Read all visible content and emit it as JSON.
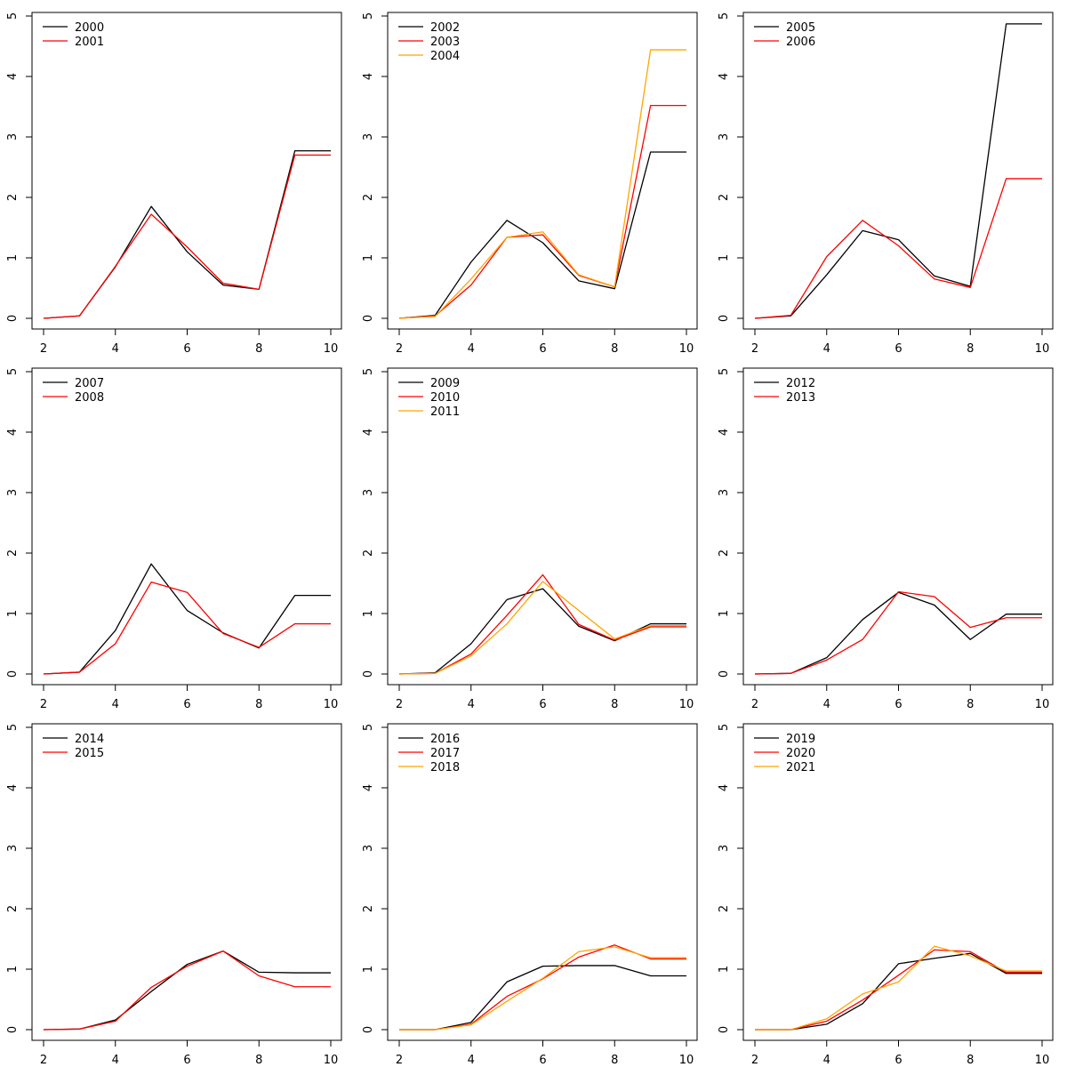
{
  "chart_data": [
    {
      "type": "line",
      "x": [
        2,
        3,
        4,
        5,
        6,
        7,
        8,
        9,
        10
      ],
      "xlim": [
        2,
        10
      ],
      "ylim": [
        0,
        5
      ],
      "xticks": [
        "2",
        "4",
        "6",
        "8",
        "10"
      ],
      "yticks": [
        "0",
        "1",
        "2",
        "3",
        "4",
        "5"
      ],
      "legend_position": "top-left",
      "series": [
        {
          "name": "2000",
          "color": "#000000",
          "values": [
            0.0,
            0.04,
            0.85,
            1.85,
            1.1,
            0.55,
            0.48,
            2.77,
            2.77
          ]
        },
        {
          "name": "2001",
          "color": "#ff0000",
          "values": [
            0.0,
            0.04,
            0.86,
            1.72,
            1.18,
            0.58,
            0.48,
            2.7,
            2.7
          ]
        }
      ]
    },
    {
      "type": "line",
      "x": [
        2,
        3,
        4,
        5,
        6,
        7,
        8,
        9,
        10
      ],
      "xlim": [
        2,
        10
      ],
      "ylim": [
        0,
        5
      ],
      "xticks": [
        "2",
        "4",
        "6",
        "8",
        "10"
      ],
      "yticks": [
        "0",
        "1",
        "2",
        "3",
        "4",
        "5"
      ],
      "legend_position": "top-left",
      "series": [
        {
          "name": "2002",
          "color": "#000000",
          "values": [
            0.0,
            0.05,
            0.93,
            1.62,
            1.25,
            0.62,
            0.49,
            2.75,
            2.75
          ]
        },
        {
          "name": "2003",
          "color": "#ff0000",
          "values": [
            0.0,
            0.04,
            0.55,
            1.34,
            1.38,
            0.71,
            0.52,
            3.52,
            3.52
          ]
        },
        {
          "name": "2004",
          "color": "#ffa500",
          "values": [
            0.0,
            0.03,
            0.65,
            1.34,
            1.43,
            0.72,
            0.52,
            4.44,
            4.44
          ]
        }
      ]
    },
    {
      "type": "line",
      "x": [
        2,
        3,
        4,
        5,
        6,
        7,
        8,
        9,
        10
      ],
      "xlim": [
        2,
        10
      ],
      "ylim": [
        0,
        5
      ],
      "xticks": [
        "2",
        "4",
        "6",
        "8",
        "10"
      ],
      "yticks": [
        "0",
        "1",
        "2",
        "3",
        "4",
        "5"
      ],
      "legend_position": "top-left",
      "series": [
        {
          "name": "2005",
          "color": "#000000",
          "values": [
            0.0,
            0.04,
            0.72,
            1.45,
            1.3,
            0.7,
            0.53,
            4.87,
            4.87
          ]
        },
        {
          "name": "2006",
          "color": "#ff0000",
          "values": [
            0.0,
            0.05,
            1.02,
            1.62,
            1.2,
            0.65,
            0.51,
            2.31,
            2.31
          ]
        }
      ]
    },
    {
      "type": "line",
      "x": [
        2,
        3,
        4,
        5,
        6,
        7,
        8,
        9,
        10
      ],
      "xlim": [
        2,
        10
      ],
      "ylim": [
        0,
        5
      ],
      "xticks": [
        "2",
        "4",
        "6",
        "8",
        "10"
      ],
      "yticks": [
        "0",
        "1",
        "2",
        "3",
        "4",
        "5"
      ],
      "legend_position": "top-left",
      "series": [
        {
          "name": "2007",
          "color": "#000000",
          "values": [
            0.0,
            0.03,
            0.72,
            1.82,
            1.05,
            0.68,
            0.43,
            1.3,
            1.3
          ]
        },
        {
          "name": "2008",
          "color": "#ff0000",
          "values": [
            0.0,
            0.03,
            0.5,
            1.52,
            1.35,
            0.67,
            0.44,
            0.83,
            0.83
          ]
        }
      ]
    },
    {
      "type": "line",
      "x": [
        2,
        3,
        4,
        5,
        6,
        7,
        8,
        9,
        10
      ],
      "xlim": [
        2,
        10
      ],
      "ylim": [
        0,
        5
      ],
      "xticks": [
        "2",
        "4",
        "6",
        "8",
        "10"
      ],
      "yticks": [
        "0",
        "1",
        "2",
        "3",
        "4",
        "5"
      ],
      "legend_position": "top-left",
      "series": [
        {
          "name": "2009",
          "color": "#000000",
          "values": [
            0.0,
            0.02,
            0.5,
            1.23,
            1.41,
            0.79,
            0.55,
            0.83,
            0.83
          ]
        },
        {
          "name": "2010",
          "color": "#ff0000",
          "values": [
            0.0,
            0.01,
            0.33,
            0.97,
            1.64,
            0.82,
            0.56,
            0.78,
            0.78
          ]
        },
        {
          "name": "2011",
          "color": "#ffa500",
          "values": [
            0.0,
            0.01,
            0.3,
            0.83,
            1.53,
            1.05,
            0.58,
            0.8,
            0.8
          ]
        }
      ]
    },
    {
      "type": "line",
      "x": [
        2,
        3,
        4,
        5,
        6,
        7,
        8,
        9,
        10
      ],
      "xlim": [
        2,
        10
      ],
      "ylim": [
        0,
        5
      ],
      "xticks": [
        "2",
        "4",
        "6",
        "8",
        "10"
      ],
      "yticks": [
        "0",
        "1",
        "2",
        "3",
        "4",
        "5"
      ],
      "legend_position": "top-left",
      "series": [
        {
          "name": "2012",
          "color": "#000000",
          "values": [
            0.0,
            0.01,
            0.27,
            0.9,
            1.35,
            1.14,
            0.57,
            0.99,
            0.99
          ]
        },
        {
          "name": "2013",
          "color": "#ff0000",
          "values": [
            0.0,
            0.01,
            0.23,
            0.57,
            1.36,
            1.28,
            0.77,
            0.93,
            0.93
          ]
        }
      ]
    },
    {
      "type": "line",
      "x": [
        2,
        3,
        4,
        5,
        6,
        7,
        8,
        9,
        10
      ],
      "xlim": [
        2,
        10
      ],
      "ylim": [
        0,
        5
      ],
      "xticks": [
        "2",
        "4",
        "6",
        "8",
        "10"
      ],
      "yticks": [
        "0",
        "1",
        "2",
        "3",
        "4",
        "5"
      ],
      "legend_position": "top-left",
      "series": [
        {
          "name": "2014",
          "color": "#000000",
          "values": [
            0.0,
            0.01,
            0.16,
            0.63,
            1.08,
            1.3,
            0.95,
            0.94,
            0.94
          ]
        },
        {
          "name": "2015",
          "color": "#ff0000",
          "values": [
            0.0,
            0.01,
            0.14,
            0.7,
            1.05,
            1.3,
            0.89,
            0.71,
            0.71
          ]
        }
      ]
    },
    {
      "type": "line",
      "x": [
        2,
        3,
        4,
        5,
        6,
        7,
        8,
        9,
        10
      ],
      "xlim": [
        2,
        10
      ],
      "ylim": [
        0,
        5
      ],
      "xticks": [
        "2",
        "4",
        "6",
        "8",
        "10"
      ],
      "yticks": [
        "0",
        "1",
        "2",
        "3",
        "4",
        "5"
      ],
      "legend_position": "top-left",
      "series": [
        {
          "name": "2016",
          "color": "#000000",
          "values": [
            0.0,
            0.0,
            0.12,
            0.79,
            1.05,
            1.06,
            1.06,
            0.89,
            0.89
          ]
        },
        {
          "name": "2017",
          "color": "#ff0000",
          "values": [
            0.0,
            0.0,
            0.09,
            0.55,
            0.84,
            1.2,
            1.4,
            1.17,
            1.17
          ]
        },
        {
          "name": "2018",
          "color": "#ffa500",
          "values": [
            0.0,
            0.0,
            0.08,
            0.47,
            0.85,
            1.29,
            1.37,
            1.19,
            1.19
          ]
        }
      ]
    },
    {
      "type": "line",
      "x": [
        2,
        3,
        4,
        5,
        6,
        7,
        8,
        9,
        10
      ],
      "xlim": [
        2,
        10
      ],
      "ylim": [
        0,
        5
      ],
      "xticks": [
        "2",
        "4",
        "6",
        "8",
        "10"
      ],
      "yticks": [
        "0",
        "1",
        "2",
        "3",
        "4",
        "5"
      ],
      "legend_position": "top-left",
      "series": [
        {
          "name": "2019",
          "color": "#000000",
          "values": [
            0.0,
            0.0,
            0.09,
            0.43,
            1.09,
            1.18,
            1.26,
            0.93,
            0.93
          ]
        },
        {
          "name": "2020",
          "color": "#ff0000",
          "values": [
            0.0,
            0.0,
            0.14,
            0.49,
            0.9,
            1.32,
            1.29,
            0.95,
            0.95
          ]
        },
        {
          "name": "2021",
          "color": "#ffa500",
          "values": [
            0.0,
            0.0,
            0.18,
            0.59,
            0.79,
            1.38,
            1.22,
            0.97,
            0.97
          ]
        }
      ]
    }
  ]
}
